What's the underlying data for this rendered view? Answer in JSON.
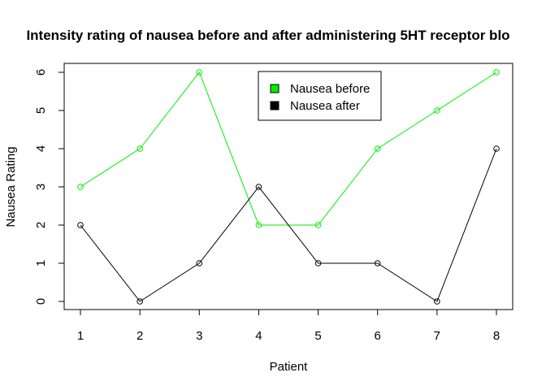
{
  "chart_data": {
    "type": "line",
    "title": "Intensity rating of nausea before and after administering 5HT receptor blo",
    "xlabel": "Patient",
    "ylabel": "Nausea Rating",
    "x": [
      1,
      2,
      3,
      4,
      5,
      6,
      7,
      8
    ],
    "xlim": [
      1,
      8
    ],
    "ylim": [
      0,
      6
    ],
    "yticks": [
      0,
      1,
      2,
      3,
      4,
      5,
      6
    ],
    "grid": false,
    "legend_position": "top-center",
    "series": [
      {
        "name": "Nausea before",
        "color": "#00ee00",
        "values": [
          3,
          4,
          6,
          2,
          2,
          4,
          5,
          6
        ]
      },
      {
        "name": "Nausea after",
        "color": "#000000",
        "values": [
          2,
          0,
          1,
          3,
          1,
          1,
          0,
          4
        ]
      }
    ]
  }
}
